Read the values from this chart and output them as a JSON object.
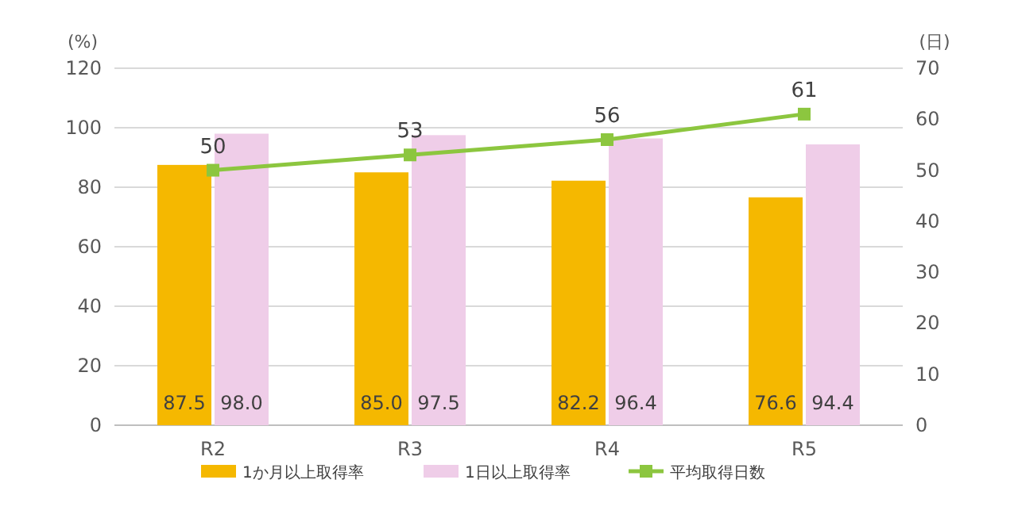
{
  "chart_data": {
    "type": "bar",
    "ylabel": "(%)",
    "y2label": "(日)",
    "categories": [
      "R2",
      "R3",
      "R4",
      "R5"
    ],
    "series": [
      {
        "name": "1か月以上取得率",
        "color": "#f5b800",
        "values": [
          87.5,
          85.0,
          82.2,
          76.6
        ],
        "value_labels": [
          "87.5",
          "85.0",
          "82.2",
          "76.6"
        ]
      },
      {
        "name": "1日以上取得率",
        "color": "#efcde8",
        "values": [
          98.0,
          97.5,
          96.4,
          94.4
        ],
        "value_labels": [
          "98.0",
          "97.5",
          "96.4",
          "94.4"
        ]
      },
      {
        "name": "平均取得日数",
        "type": "line",
        "axis": "y2",
        "color": "#8cc63f",
        "values": [
          50,
          53,
          56,
          61
        ],
        "marker": "square",
        "value_labels": [
          "50",
          "53",
          "56",
          "61"
        ]
      }
    ],
    "ylim": [
      0,
      120
    ],
    "yticks": [
      0,
      20,
      40,
      60,
      80,
      100,
      120
    ],
    "y2lim": [
      0,
      70
    ],
    "y2ticks": [
      0,
      10,
      20,
      30,
      40,
      50,
      60,
      70
    ],
    "grid": "y",
    "legend": "bottom"
  }
}
